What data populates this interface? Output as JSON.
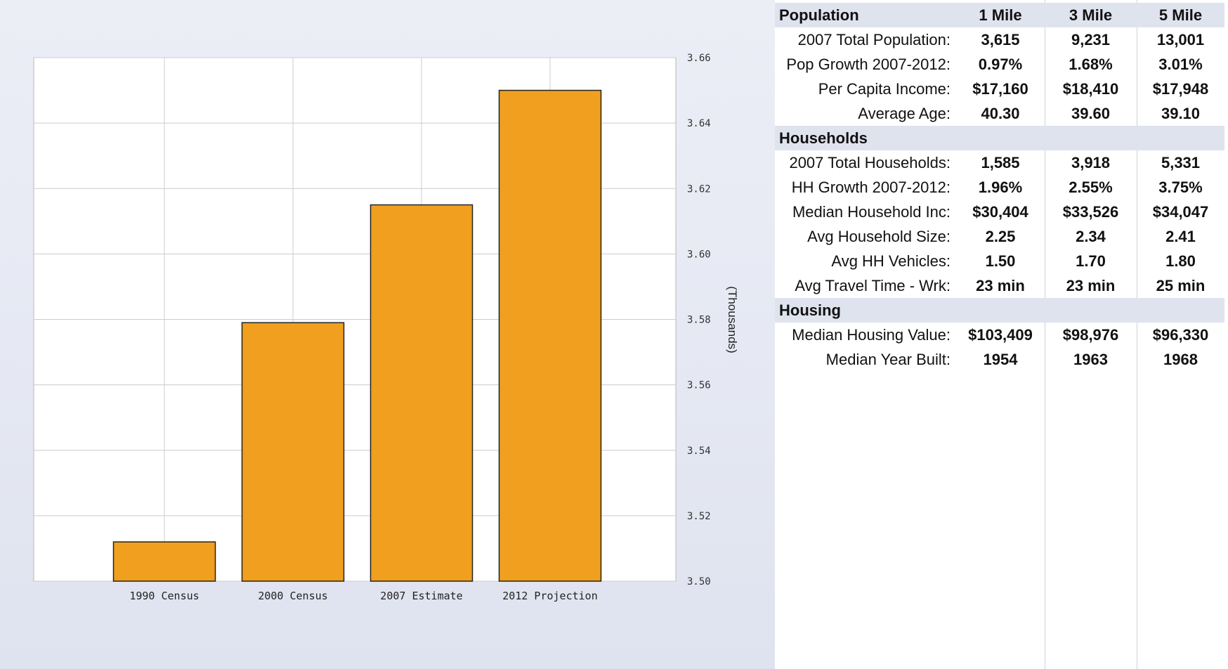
{
  "chart_data": {
    "type": "bar",
    "categories": [
      "1990 Census",
      "2000 Census",
      "2007 Estimate",
      "2012 Projection"
    ],
    "values": [
      3.512,
      3.579,
      3.615,
      3.65
    ],
    "ylabel": "(Thousands)",
    "ylim": [
      3.5,
      3.66
    ],
    "yticks": [
      "3.66",
      "3.64",
      "3.62",
      "3.60",
      "3.58",
      "3.56",
      "3.54",
      "3.52",
      "3.50"
    ],
    "grid": true,
    "bar_color": "#f0a01e",
    "y_axis_side": "right"
  },
  "table": {
    "sections": [
      {
        "title": "Population",
        "columns": [
          "1 Mile",
          "3 Mile",
          "5 Mile"
        ],
        "rows": [
          {
            "label": "2007 Total Population:",
            "values": [
              "3,615",
              "9,231",
              "13,001"
            ]
          },
          {
            "label": "Pop Growth 2007-2012:",
            "values": [
              "0.97%",
              "1.68%",
              "3.01%"
            ]
          },
          {
            "label": "Per Capita Income:",
            "values": [
              "$17,160",
              "$18,410",
              "$17,948"
            ]
          },
          {
            "label": "Average Age:",
            "values": [
              "40.30",
              "39.60",
              "39.10"
            ]
          }
        ]
      },
      {
        "title": "Households",
        "columns": [
          "",
          "",
          ""
        ],
        "rows": [
          {
            "label": "2007 Total Households:",
            "values": [
              "1,585",
              "3,918",
              "5,331"
            ]
          },
          {
            "label": "HH Growth 2007-2012:",
            "values": [
              "1.96%",
              "2.55%",
              "3.75%"
            ]
          },
          {
            "label": "Median Household Inc:",
            "values": [
              "$30,404",
              "$33,526",
              "$34,047"
            ]
          },
          {
            "label": "Avg Household Size:",
            "values": [
              "2.25",
              "2.34",
              "2.41"
            ]
          },
          {
            "label": "Avg HH Vehicles:",
            "values": [
              "1.50",
              "1.70",
              "1.80"
            ]
          },
          {
            "label": "Avg Travel Time - Wrk:",
            "values": [
              "23 min",
              "23 min",
              "25 min"
            ]
          }
        ]
      },
      {
        "title": "Housing",
        "columns": [
          "",
          "",
          ""
        ],
        "rows": [
          {
            "label": "Median Housing Value:",
            "values": [
              "$103,409",
              "$98,976",
              "$96,330"
            ]
          },
          {
            "label": "Median Year Built:",
            "values": [
              "1954",
              "1963",
              "1968"
            ]
          }
        ]
      }
    ]
  }
}
